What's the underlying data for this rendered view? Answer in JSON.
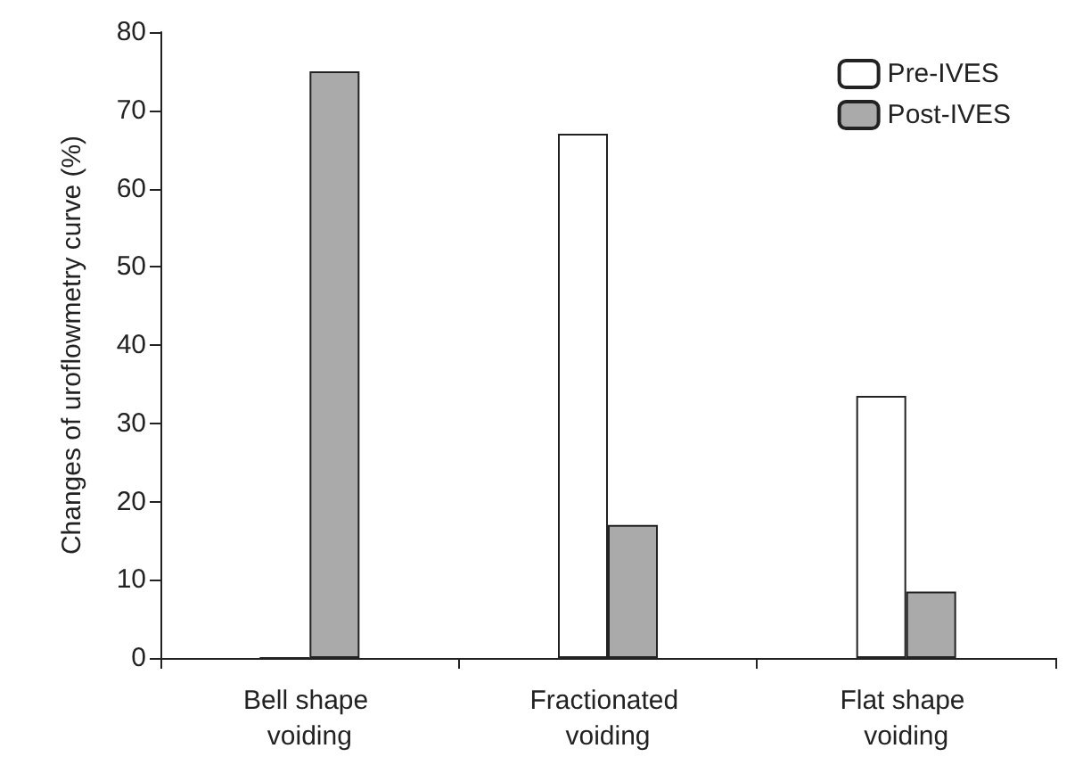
{
  "chart_data": {
    "type": "bar",
    "ylabel": "Changes of uroflowmetry curve (%)",
    "categories": [
      "Bell shape voiding",
      "Fractionated voiding",
      "Flat shape voiding"
    ],
    "series": [
      {
        "name": "Pre-IVES",
        "color": "#ffffff",
        "values": [
          0,
          67,
          33.5
        ]
      },
      {
        "name": "Post-IVES",
        "color": "#aaaaaa",
        "values": [
          75,
          17,
          8.5
        ]
      }
    ],
    "ylim": [
      0,
      80
    ],
    "yticks": [
      0,
      10,
      20,
      30,
      40,
      50,
      60,
      70,
      80
    ],
    "grid": false,
    "legend": "top right"
  }
}
